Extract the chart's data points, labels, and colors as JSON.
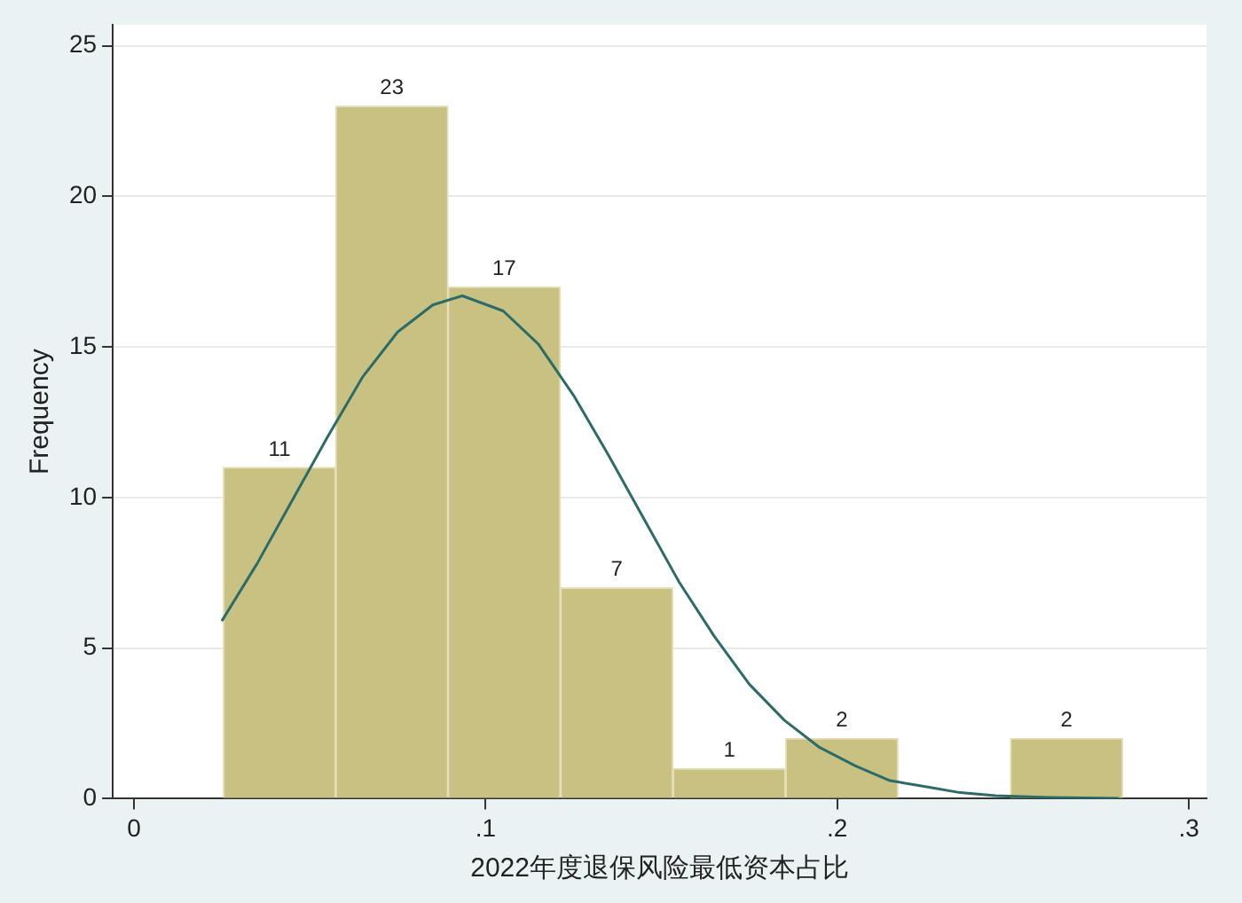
{
  "chart_data": {
    "type": "histogram",
    "xlabel": "2022年度退保风险最低资本占比",
    "ylabel": "Frequency",
    "bins": [
      0.0254,
      0.0574,
      0.0893,
      0.1213,
      0.1533,
      0.1853,
      0.2173,
      0.2492,
      0.2812
    ],
    "values": [
      11,
      23,
      17,
      7,
      1,
      2,
      0,
      2
    ],
    "value_labels": [
      "11",
      "23",
      "17",
      "7",
      "1",
      "2",
      null,
      "2"
    ],
    "color": "#c9c182",
    "series": [
      {
        "type": "line",
        "color": "#2b6b68",
        "x": [
          0.025,
          0.035,
          0.045,
          0.055,
          0.065,
          0.075,
          0.085,
          0.0934,
          0.105,
          0.115,
          0.125,
          0.135,
          0.145,
          0.155,
          0.165,
          0.175,
          0.185,
          0.195,
          0.205,
          0.215,
          0.225,
          0.235,
          0.245,
          0.26,
          0.28
        ],
        "values": [
          5.9,
          7.8,
          9.9,
          12.0,
          14.0,
          15.5,
          16.4,
          16.7,
          16.2,
          15.1,
          13.4,
          11.4,
          9.3,
          7.2,
          5.4,
          3.8,
          2.6,
          1.7,
          1.1,
          0.6,
          0.4,
          0.2,
          0.1,
          0.04,
          0.01
        ]
      }
    ],
    "xlim": [
      -0.006,
      0.305
    ],
    "xticks": [
      0,
      {
        "value": 0.1,
        "label": ".1"
      },
      {
        "value": 0.2,
        "label": ".2"
      },
      {
        "value": 0.3,
        "label": ".3"
      }
    ],
    "ylim": [
      0,
      25.7
    ],
    "yticks": [
      0,
      5,
      10,
      15,
      20,
      25
    ],
    "grid": "y",
    "legend": false
  }
}
